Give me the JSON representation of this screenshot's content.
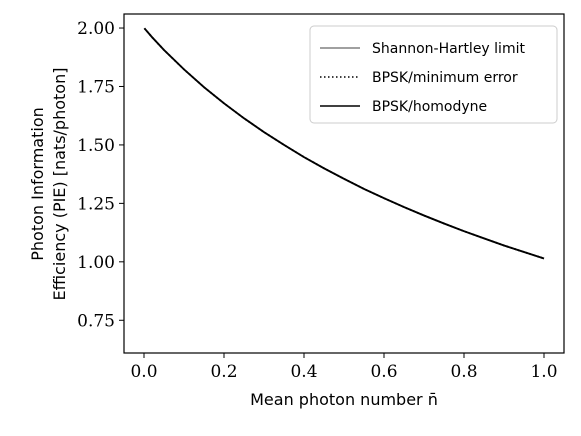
{
  "chart_data": {
    "type": "line",
    "xlabel": "Mean photon number n̄",
    "ylabel": [
      "Photon Information",
      "Efficiency (PIE) [nats/photon]"
    ],
    "xlim": [
      -0.05,
      1.05
    ],
    "ylim": [
      0.61,
      2.06
    ],
    "xticks": [
      0.0,
      0.2,
      0.4,
      0.6,
      0.8,
      1.0
    ],
    "xtick_labels": [
      "0.0",
      "0.2",
      "0.4",
      "0.6",
      "0.8",
      "1.0"
    ],
    "yticks": [
      0.75,
      1.0,
      1.25,
      1.5,
      1.75,
      2.0
    ],
    "ytick_labels": [
      "0.75",
      "1.00",
      "1.25",
      "1.50",
      "1.75",
      "2.00"
    ],
    "grid": false,
    "legend_position": "top-right",
    "series": [
      {
        "name": "Shannon-Hartley limit",
        "color": "#808080",
        "dash": "solid",
        "x": [
          0.001,
          0.02,
          0.05,
          0.1,
          0.15,
          0.2,
          0.25,
          0.3,
          0.35,
          0.4,
          0.45,
          0.5,
          0.55,
          0.6,
          0.65,
          0.7,
          0.75,
          0.8,
          0.85,
          0.9,
          0.95,
          1.0
        ],
        "y": [
          1.999,
          1.961,
          1.906,
          1.823,
          1.747,
          1.678,
          1.614,
          1.555,
          1.5,
          1.448,
          1.4,
          1.355,
          1.312,
          1.272,
          1.234,
          1.198,
          1.164,
          1.131,
          1.1,
          1.07,
          1.042,
          1.014
        ]
      },
      {
        "name": "BPSK/minimum error",
        "color": "#000000",
        "dash": "dotted",
        "x": [
          0.001,
          0.02,
          0.05,
          0.1,
          0.15,
          0.2,
          0.25,
          0.3,
          0.35,
          0.4,
          0.45,
          0.5,
          0.55,
          0.6,
          0.65,
          0.7,
          0.75,
          0.8,
          0.85,
          0.9,
          0.95,
          1.0
        ],
        "y": [
          1.999,
          1.961,
          1.906,
          1.823,
          1.747,
          1.678,
          1.614,
          1.555,
          1.5,
          1.448,
          1.4,
          1.355,
          1.312,
          1.272,
          1.234,
          1.198,
          1.164,
          1.131,
          1.1,
          1.07,
          1.042,
          1.014
        ]
      },
      {
        "name": "BPSK/homodyne",
        "color": "#000000",
        "dash": "solid",
        "x": [
          0.001,
          0.02,
          0.05,
          0.1,
          0.15,
          0.2,
          0.25,
          0.3,
          0.35,
          0.4,
          0.45,
          0.5,
          0.55,
          0.6,
          0.65,
          0.7,
          0.75,
          0.8,
          0.85,
          0.9,
          0.95,
          1.0
        ],
        "y": [
          1.999,
          1.961,
          1.906,
          1.823,
          1.747,
          1.678,
          1.614,
          1.555,
          1.5,
          1.448,
          1.4,
          1.355,
          1.312,
          1.272,
          1.234,
          1.198,
          1.164,
          1.131,
          1.1,
          1.07,
          1.042,
          1.014
        ]
      }
    ]
  }
}
